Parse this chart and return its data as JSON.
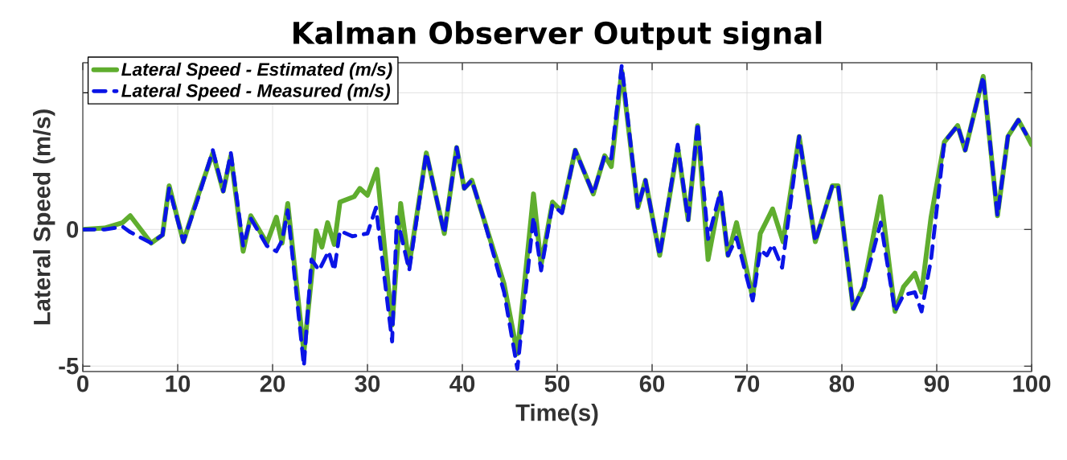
{
  "chart_data": {
    "type": "line",
    "title": "Kalman Observer Output signal",
    "xlabel": "Time(s)",
    "ylabel": "Lateral Speed (m/s)",
    "xlim": [
      0,
      100
    ],
    "xticks": [
      0,
      10,
      20,
      30,
      40,
      50,
      60,
      70,
      80,
      90,
      100
    ],
    "ylim": [
      -5.2,
      6.1
    ],
    "yticks": [
      -5,
      0,
      {
        "value": 5,
        "label": null
      }
    ],
    "grid": true,
    "legend": "top left",
    "marker": "none",
    "series": [
      {
        "name": "*Lateral Speed - Estimated (m/s)*",
        "color": "#5fad2e",
        "line_style": "solid",
        "x": [
          0,
          2.3,
          4.2,
          5.0,
          7.2,
          8.4,
          9.1,
          10.6,
          12.3,
          13.7,
          14.8,
          15.6,
          16.9,
          17.7,
          19.4,
          20.4,
          21.0,
          21.6,
          23.3,
          24.6,
          25.2,
          25.8,
          26.5,
          27.1,
          28.6,
          29.2,
          30.0,
          31.0,
          32.6,
          33.5,
          34.4,
          36.2,
          38.1,
          39.4,
          40.2,
          41.0,
          42.2,
          44.4,
          45.8,
          47.5,
          48.3,
          49.5,
          50.5,
          51.9,
          53.8,
          55.0,
          55.7,
          56.8,
          58.5,
          59.3,
          60.8,
          62.7,
          63.8,
          64.8,
          65.9,
          67.2,
          68.0,
          68.9,
          70.6,
          71.4,
          72.7,
          73.8,
          75.5,
          77.2,
          79.0,
          79.6,
          81.2,
          82.3,
          84.1,
          85.6,
          86.5,
          87.7,
          88.4,
          89.4,
          90.8,
          92.2,
          93.0,
          94.9,
          96.4,
          97.5,
          98.6,
          99.4,
          100
        ],
        "values": [
          0,
          0.05,
          0.25,
          0.5,
          -0.5,
          -0.2,
          1.6,
          -0.45,
          1.4,
          2.8,
          1.4,
          2.7,
          -0.8,
          0.5,
          -0.5,
          0.45,
          -0.5,
          0.95,
          -4.5,
          -0.05,
          -0.65,
          0.25,
          -0.55,
          1.0,
          1.2,
          1.5,
          1.25,
          2.2,
          -3.5,
          0.95,
          -1.3,
          2.8,
          -0.15,
          3.0,
          1.5,
          1.8,
          0.45,
          -2.0,
          -4.55,
          1.3,
          -1.3,
          1.0,
          0.65,
          2.9,
          1.3,
          2.7,
          2.3,
          5.8,
          0.8,
          1.8,
          -0.95,
          3.0,
          0.35,
          3.8,
          -1.1,
          1.3,
          -0.95,
          0.25,
          -2.5,
          -0.15,
          0.75,
          -0.45,
          3.4,
          -0.45,
          1.6,
          1.6,
          -2.9,
          -2.1,
          1.2,
          -3.0,
          -2.1,
          -1.6,
          -2.3,
          0.45,
          3.2,
          3.8,
          2.9,
          5.6,
          0.5,
          3.4,
          4.0,
          3.5,
          3.1
        ]
      },
      {
        "name": "*Lateral Speed - Measured (m/s)*",
        "color": "#0a14e6",
        "line_style": "dashed",
        "x": [
          0,
          2.3,
          4.2,
          5.0,
          7.2,
          8.4,
          9.1,
          10.6,
          12.3,
          13.7,
          14.8,
          15.6,
          16.9,
          17.7,
          19.4,
          20.4,
          21.0,
          21.6,
          23.3,
          24.1,
          24.9,
          25.9,
          26.5,
          27.1,
          28.4,
          30.0,
          30.9,
          32.6,
          33.1,
          34.4,
          36.2,
          38.1,
          39.4,
          40.2,
          41.0,
          42.2,
          44.4,
          45.8,
          47.5,
          48.3,
          49.5,
          50.5,
          51.9,
          53.8,
          55.0,
          55.7,
          56.8,
          58.5,
          59.3,
          60.8,
          62.7,
          63.8,
          64.8,
          65.9,
          67.2,
          68.0,
          68.9,
          70.6,
          71.4,
          72.1,
          72.7,
          73.7,
          75.5,
          77.2,
          79.0,
          79.6,
          81.2,
          82.3,
          84.1,
          85.6,
          86.5,
          87.7,
          88.4,
          89.4,
          90.8,
          92.2,
          93.0,
          94.9,
          96.4,
          97.5,
          98.6,
          99.4
        ],
        "values": [
          0,
          0,
          0.1,
          -0.1,
          -0.5,
          -0.2,
          1.5,
          -0.45,
          1.3,
          2.9,
          1.4,
          2.8,
          -0.6,
          0.4,
          -0.6,
          -0.8,
          -0.4,
          0.7,
          -5.0,
          -1.1,
          -1.5,
          -0.8,
          -1.5,
          -0.05,
          -0.25,
          -0.15,
          0.8,
          -4.1,
          0.45,
          -1.5,
          2.8,
          -0.15,
          3.0,
          1.5,
          1.8,
          0.45,
          -2.3,
          -5.1,
          0.45,
          -1.5,
          0.9,
          0.6,
          2.9,
          1.3,
          2.7,
          2.6,
          6.0,
          0.8,
          1.8,
          -0.95,
          3.1,
          0.35,
          3.9,
          -0.35,
          1.4,
          -0.95,
          -0.3,
          -2.6,
          -0.75,
          -0.95,
          -0.55,
          -1.4,
          3.4,
          -0.45,
          1.6,
          1.6,
          -2.9,
          -2.1,
          0.25,
          -3.0,
          -2.4,
          -2.3,
          -3.0,
          -1.1,
          3.2,
          3.8,
          2.9,
          5.6,
          0.5,
          3.4,
          4.0,
          3.5
        ]
      }
    ]
  }
}
